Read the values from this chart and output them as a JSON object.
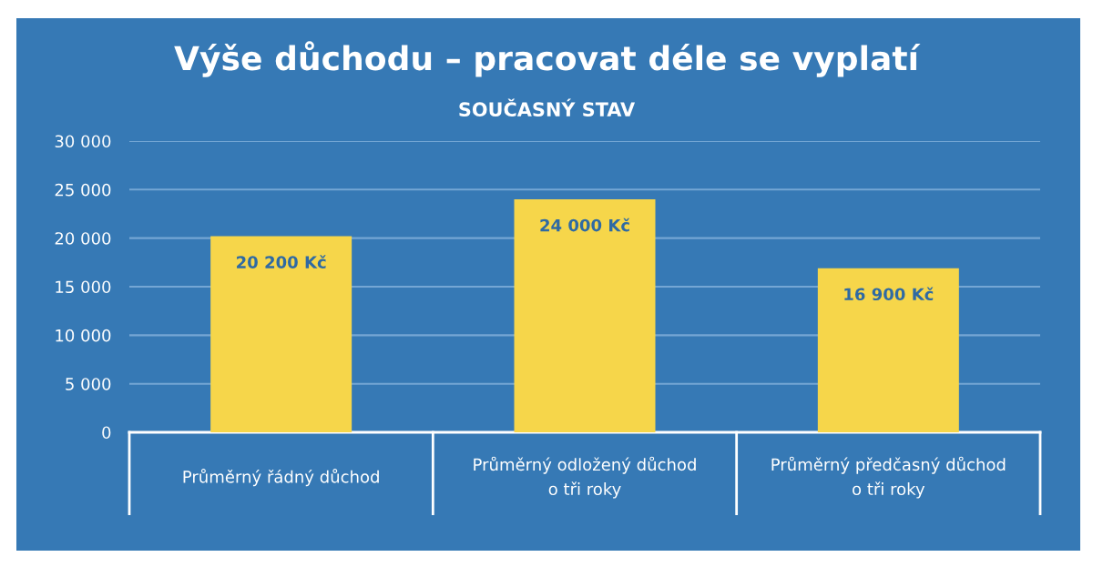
{
  "chart_data": {
    "type": "bar",
    "title": "Výše důchodu – pracovat déle se vyplatí",
    "subtitle": "SOUČASNÝ STAV",
    "categories": [
      "Průměrný řádný důchod",
      "Průměrný odložený důchod\no tři roky",
      "Průměrný předčasný důchod\no tři roky"
    ],
    "values": [
      20200,
      24000,
      16900
    ],
    "value_labels": [
      "20 200 Kč",
      "24 000 Kč",
      "16 900 Kč"
    ],
    "color": "#f6d64a",
    "ylim": [
      0,
      30000
    ],
    "yticks": [
      {
        "value": 0,
        "label": "0"
      },
      {
        "value": 5000,
        "label": "5 000"
      },
      {
        "value": 10000,
        "label": "10 000"
      },
      {
        "value": 15000,
        "label": "15 000"
      },
      {
        "value": 20000,
        "label": "20 000"
      },
      {
        "value": 25000,
        "label": "25 000"
      },
      {
        "value": 30000,
        "label": "30 000"
      }
    ],
    "grid": "y",
    "legend": false
  }
}
